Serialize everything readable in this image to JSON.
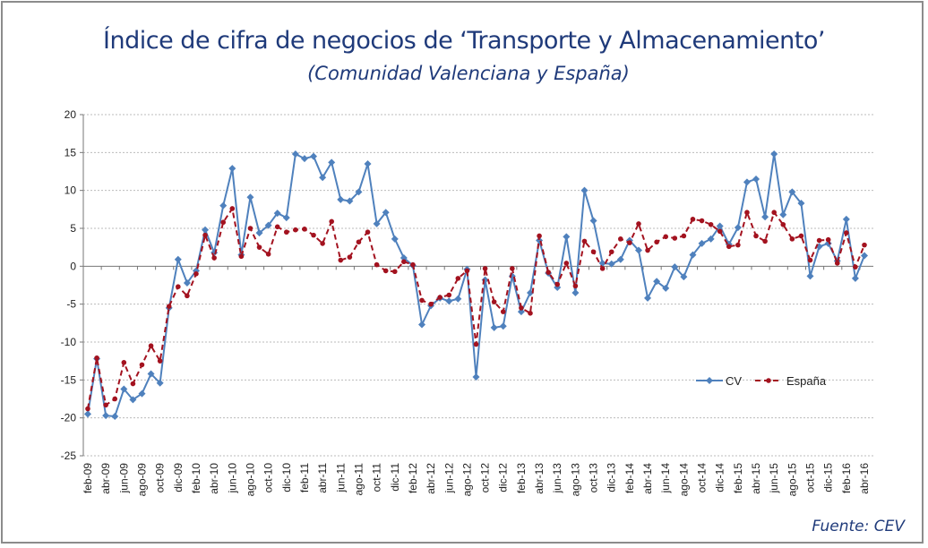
{
  "title": "Índice de cifra de negocios de ‘Transporte y Almacenamiento’",
  "subtitle": "(Comunidad Valenciana y España)",
  "source": "Fuente: CEV",
  "chart_data": {
    "type": "line",
    "title": "Índice de cifra de negocios de ‘Transporte y Almacenamiento’",
    "subtitle": "(Comunidad Valenciana y España)",
    "xlabel": "",
    "ylabel": "",
    "ylim": [
      -25,
      20
    ],
    "yticks": [
      20,
      15,
      10,
      5,
      0,
      -5,
      -10,
      -15,
      -20,
      -25
    ],
    "grid": true,
    "legend": "right-lower-inside",
    "x_label_every": 2,
    "categories": [
      "feb-09",
      "mar-09",
      "abr-09",
      "may-09",
      "jun-09",
      "jul-09",
      "ago-09",
      "sep-09",
      "oct-09",
      "nov-09",
      "dic-09",
      "ene-10",
      "feb-10",
      "mar-10",
      "abr-10",
      "may-10",
      "jun-10",
      "jul-10",
      "ago-10",
      "sep-10",
      "oct-10",
      "nov-10",
      "dic-10",
      "ene-11",
      "feb-11",
      "mar-11",
      "abr-11",
      "may-11",
      "jun-11",
      "jul-11",
      "ago-11",
      "sep-11",
      "oct-11",
      "nov-11",
      "dic-11",
      "ene-12",
      "feb-12",
      "mar-12",
      "abr-12",
      "may-12",
      "jun-12",
      "jul-12",
      "ago-12",
      "sep-12",
      "oct-12",
      "nov-12",
      "dic-12",
      "ene-13",
      "feb-13",
      "mar-13",
      "abr-13",
      "may-13",
      "jun-13",
      "jul-13",
      "ago-13",
      "sep-13",
      "oct-13",
      "nov-13",
      "dic-13",
      "ene-14",
      "feb-14",
      "mar-14",
      "abr-14",
      "may-14",
      "jun-14",
      "jul-14",
      "ago-14",
      "sep-14",
      "oct-14",
      "nov-14",
      "dic-14",
      "ene-15",
      "feb-15",
      "mar-15",
      "abr-15",
      "may-15",
      "jun-15",
      "jul-15",
      "ago-15",
      "sep-15",
      "oct-15",
      "nov-15",
      "dic-15",
      "ene-16",
      "feb-16",
      "mar-16",
      "abr-16"
    ],
    "series": [
      {
        "name": "CV",
        "color": "#4f81bd",
        "marker": "diamond",
        "style": "solid",
        "values": [
          -19.5,
          -12.2,
          -19.7,
          -19.8,
          -16.2,
          -17.6,
          -16.8,
          -14.2,
          -15.4,
          -5.5,
          0.9,
          -2.2,
          -0.6,
          4.8,
          1.8,
          8.0,
          12.9,
          1.5,
          9.1,
          4.4,
          5.4,
          7.0,
          6.4,
          14.8,
          14.2,
          14.5,
          11.7,
          13.7,
          8.8,
          8.6,
          9.8,
          13.5,
          5.6,
          7.1,
          3.6,
          1.1,
          0.1,
          -7.7,
          -5.2,
          -4.2,
          -4.6,
          -4.3,
          -0.4,
          -14.6,
          -1.8,
          -8.1,
          -7.9,
          -1.3,
          -6.0,
          -3.5,
          3.4,
          -0.9,
          -2.8,
          3.9,
          -3.5,
          10.0,
          6.0,
          0.4,
          0.3,
          0.9,
          3.4,
          2.1,
          -4.2,
          -2.0,
          -2.9,
          -0.1,
          -1.4,
          1.5,
          3.0,
          3.6,
          5.3,
          2.9,
          5.1,
          11.1,
          11.5,
          6.5,
          14.8,
          6.8,
          9.8,
          8.3,
          -1.3,
          2.6,
          3.0,
          0.7,
          6.2,
          -1.6,
          1.4
        ]
      },
      {
        "name": "España",
        "color": "#a3121f",
        "marker": "circle",
        "style": "dashed",
        "values": [
          -18.8,
          -12.1,
          -18.3,
          -17.5,
          -12.7,
          -15.5,
          -13.0,
          -10.5,
          -12.5,
          -5.3,
          -2.7,
          -3.9,
          -1.0,
          4.1,
          1.1,
          5.8,
          7.6,
          1.3,
          5.0,
          2.5,
          1.6,
          5.2,
          4.5,
          4.8,
          4.9,
          4.1,
          3.0,
          5.9,
          0.8,
          1.2,
          3.2,
          4.5,
          0.2,
          -0.6,
          -0.7,
          0.6,
          0.2,
          -4.5,
          -5.0,
          -4.1,
          -3.8,
          -1.6,
          -0.6,
          -10.3,
          -0.3,
          -4.7,
          -6.0,
          -0.3,
          -5.5,
          -6.2,
          4.0,
          -0.8,
          -2.4,
          0.4,
          -2.6,
          3.3,
          1.9,
          -0.3,
          1.9,
          3.6,
          3.1,
          5.6,
          2.1,
          3.2,
          3.9,
          3.7,
          4.0,
          6.2,
          6.0,
          5.5,
          4.6,
          2.6,
          2.8,
          7.1,
          4.0,
          3.3,
          7.1,
          5.5,
          3.6,
          4.0,
          0.8,
          3.4,
          3.5,
          0.4,
          4.4,
          -0.1,
          2.8
        ]
      }
    ]
  }
}
